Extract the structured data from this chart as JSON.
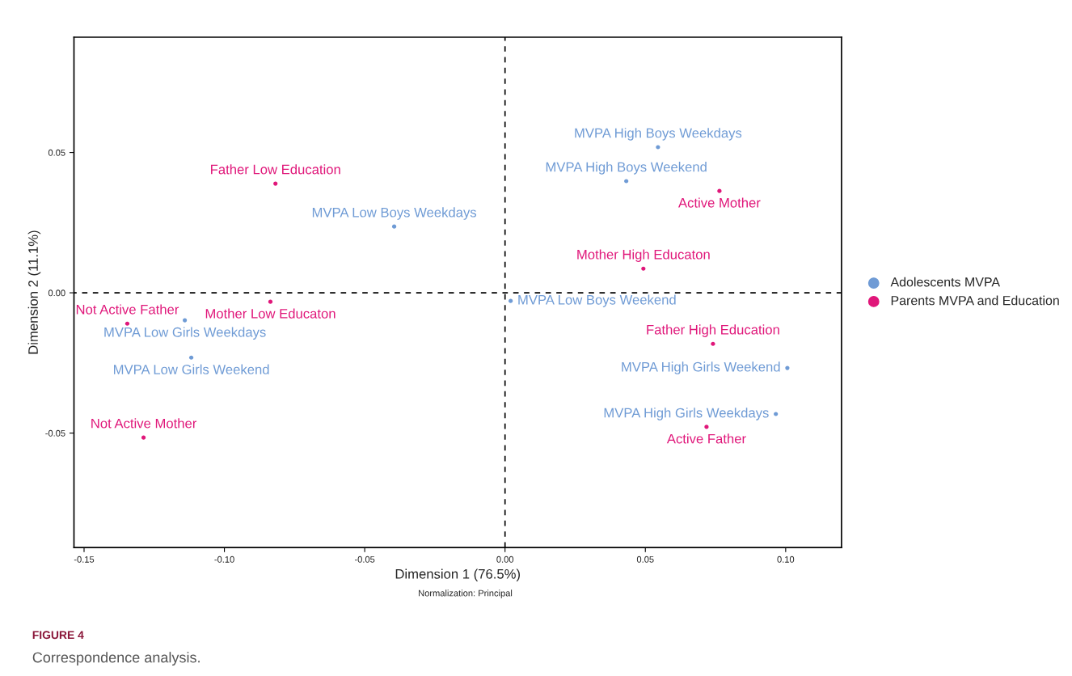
{
  "chart_data": {
    "type": "scatter",
    "xlabel": "Dimension 1 (76.5%)",
    "ylabel": "Dimension 2 (11.1%)",
    "xlim": [
      -0.1536,
      0.1199
    ],
    "ylim": [
      -0.0908,
      0.0911
    ],
    "xticks": [
      {
        "value": -0.15,
        "label": "-0.15"
      },
      {
        "value": -0.1,
        "label": "-0.10"
      },
      {
        "value": -0.05,
        "label": "-0.05"
      },
      {
        "value": 0,
        "label": "0.00"
      },
      {
        "value": 0.05,
        "label": "0.05"
      },
      {
        "value": 0.1,
        "label": "0.10"
      }
    ],
    "yticks": [
      {
        "value": -0.05,
        "label": "-0.05"
      },
      {
        "value": 0,
        "label": "0.00"
      },
      {
        "value": 0.05,
        "label": "0.05"
      }
    ],
    "grid": false,
    "legend": "right",
    "marker": "circle",
    "series": [
      {
        "name": "Adolescents MVPA",
        "color": "#6f9bd5",
        "x": [
          0.0545,
          0.0432,
          -0.0395,
          0.002,
          -0.1141,
          -0.1118,
          0.1006,
          0.0965
        ],
        "values": [
          0.0519,
          0.0398,
          0.0236,
          -0.0029,
          -0.0098,
          -0.0231,
          -0.0268,
          -0.0432
        ]
      },
      {
        "name": "Parents MVPA and Education",
        "color": "#e0177a",
        "x": [
          -0.0818,
          0.0764,
          0.0493,
          -0.0836,
          -0.1346,
          0.0741,
          -0.1288,
          0.0718
        ],
        "values": [
          0.0389,
          0.0363,
          0.0086,
          -0.0032,
          -0.011,
          -0.0182,
          -0.0516,
          -0.0478
        ]
      }
    ],
    "ref_lines": [
      {
        "axis": "x",
        "value": 0,
        "color": "#000000",
        "line_style": "dashed"
      },
      {
        "axis": "y",
        "value": 0,
        "color": "#000000",
        "line_style": "dashed"
      }
    ],
    "annotations": [
      {
        "text": "MVPA High Boys Weekdays",
        "x": 0.0545,
        "y": 0.0519
      },
      {
        "text": "MVPA High Boys Weekend",
        "x": 0.0432,
        "y": 0.0398
      },
      {
        "text": "MVPA Low Boys Weekdays",
        "x": -0.0395,
        "y": 0.0236
      },
      {
        "text": "MVPA Low Boys Weekend",
        "x": 0.002,
        "y": -0.0029
      },
      {
        "text": "MVPA Low Girls Weekdays",
        "x": -0.1141,
        "y": -0.0098
      },
      {
        "text": "MVPA Low Girls Weekend",
        "x": -0.1118,
        "y": -0.0231
      },
      {
        "text": "MVPA High Girls Weekend",
        "x": 0.1006,
        "y": -0.0268
      },
      {
        "text": "MVPA High Girls Weekdays",
        "x": 0.0965,
        "y": -0.0432
      },
      {
        "text": "Father Low Education",
        "x": -0.0818,
        "y": 0.0389
      },
      {
        "text": "Active Mother",
        "x": 0.0764,
        "y": 0.0363
      },
      {
        "text": "Mother High Educaton",
        "x": 0.0493,
        "y": 0.0086
      },
      {
        "text": "Mother Low Educaton",
        "x": -0.0836,
        "y": -0.0032
      },
      {
        "text": "Not Active Father",
        "x": -0.1346,
        "y": -0.011
      },
      {
        "text": "Father High Education",
        "x": 0.0741,
        "y": -0.0182
      },
      {
        "text": "Not Active Mother",
        "x": -0.1288,
        "y": -0.0516
      },
      {
        "text": "Active Father",
        "x": 0.0718,
        "y": -0.0478
      },
      "Normalization: Principal",
      "FIGURE 4",
      "Correspondence analysis."
    ]
  }
}
